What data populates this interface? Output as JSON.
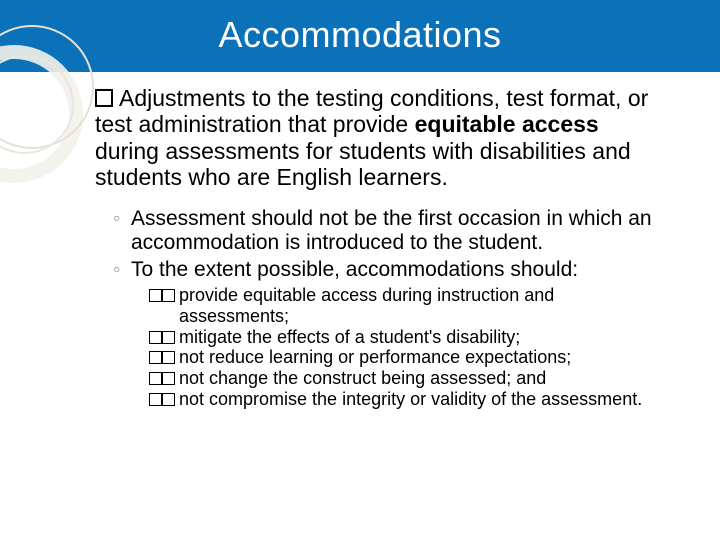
{
  "header": {
    "title": "Accommodations",
    "bg_color": "#0b71b8",
    "title_color": "#ffffff",
    "title_fontsize": 36
  },
  "main": {
    "lead_word": "Adjustments",
    "rest": " to the testing conditions, test format, or test administration that provide ",
    "bold_phrase": "equitable access",
    "tail": " during assessments for students with disabilities and students who are English learners."
  },
  "subs": [
    "Assessment should not be the first occasion in which an accommodation is introduced to the student.",
    "To the extent possible, accommodations should:"
  ],
  "subsubs": [
    "provide equitable access during instruction and assessments;",
    "mitigate the effects of a student's disability;",
    "not reduce learning or performance expectations;",
    "not change the construct being assessed; and",
    "not compromise the integrity or validity of the assessment."
  ],
  "style": {
    "body_fontsize": 23,
    "sub_fontsize": 21,
    "subsub_fontsize": 18,
    "marker_square_border": "#000000",
    "sub_marker_color": "#9a9a9a",
    "circle_color": "#e4e0d7"
  }
}
